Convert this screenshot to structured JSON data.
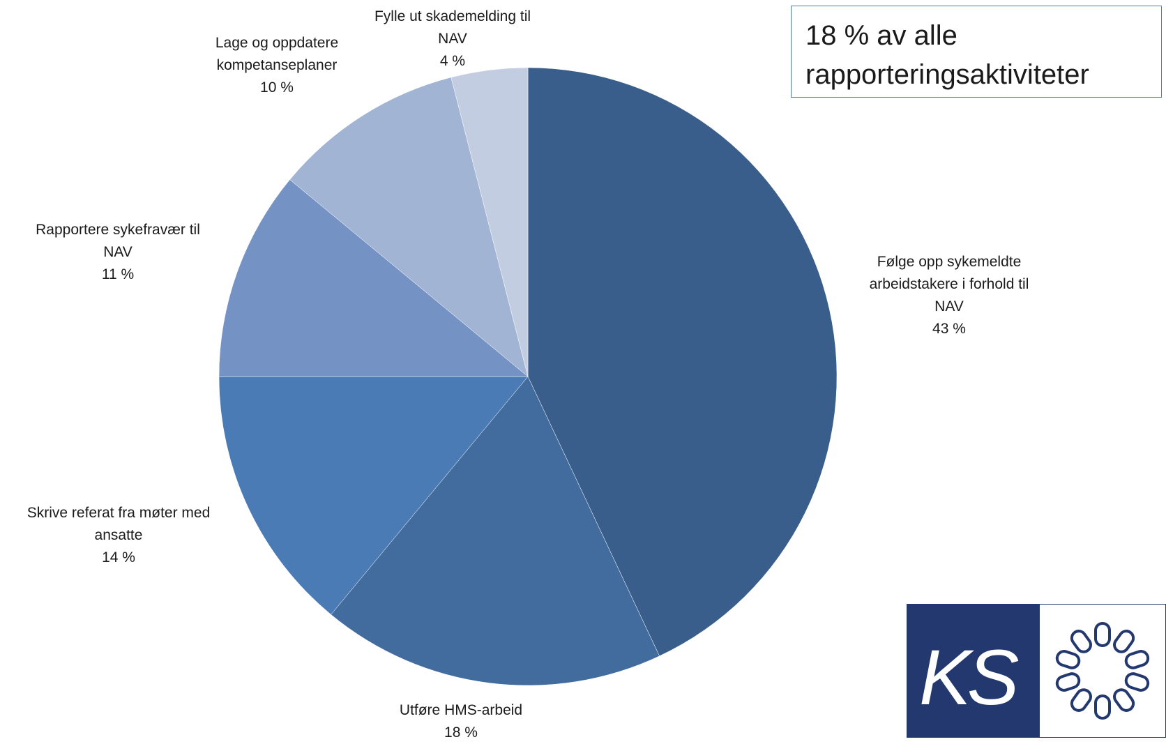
{
  "chart_data": {
    "type": "pie",
    "title": "",
    "slices": [
      {
        "label": [
          "Følge opp sykemeldte",
          "arbeidstakere i forhold til",
          "NAV"
        ],
        "value": 43,
        "value_label": "43 %",
        "color": "#3a5e8c"
      },
      {
        "label": [
          "Utføre HMS-arbeid"
        ],
        "value": 18,
        "value_label": "18 %",
        "color": "#426c9e"
      },
      {
        "label": [
          "Skrive referat fra møter med",
          "ansatte"
        ],
        "value": 14,
        "value_label": "14 %",
        "color": "#4a7bb4"
      },
      {
        "label": [
          "Rapportere sykefravær til",
          "NAV"
        ],
        "value": 11,
        "value_label": "11 %",
        "color": "#7492c4"
      },
      {
        "label": [
          "Lage og oppdatere",
          "kompetanseplaner"
        ],
        "value": 10,
        "value_label": "10 %",
        "color": "#a2b4d4"
      },
      {
        "label": [
          "Fylle ut skademelding til",
          "NAV"
        ],
        "value": 4,
        "value_label": "4 %",
        "color": "#c3cde2"
      }
    ]
  },
  "callout": {
    "line1": "18 % av alle",
    "line2": "rapporteringsaktiviteter"
  },
  "logo": {
    "text": "KS",
    "colors": {
      "panel": "#23386f",
      "chain": "#23386f",
      "background": "#ffffff"
    }
  }
}
